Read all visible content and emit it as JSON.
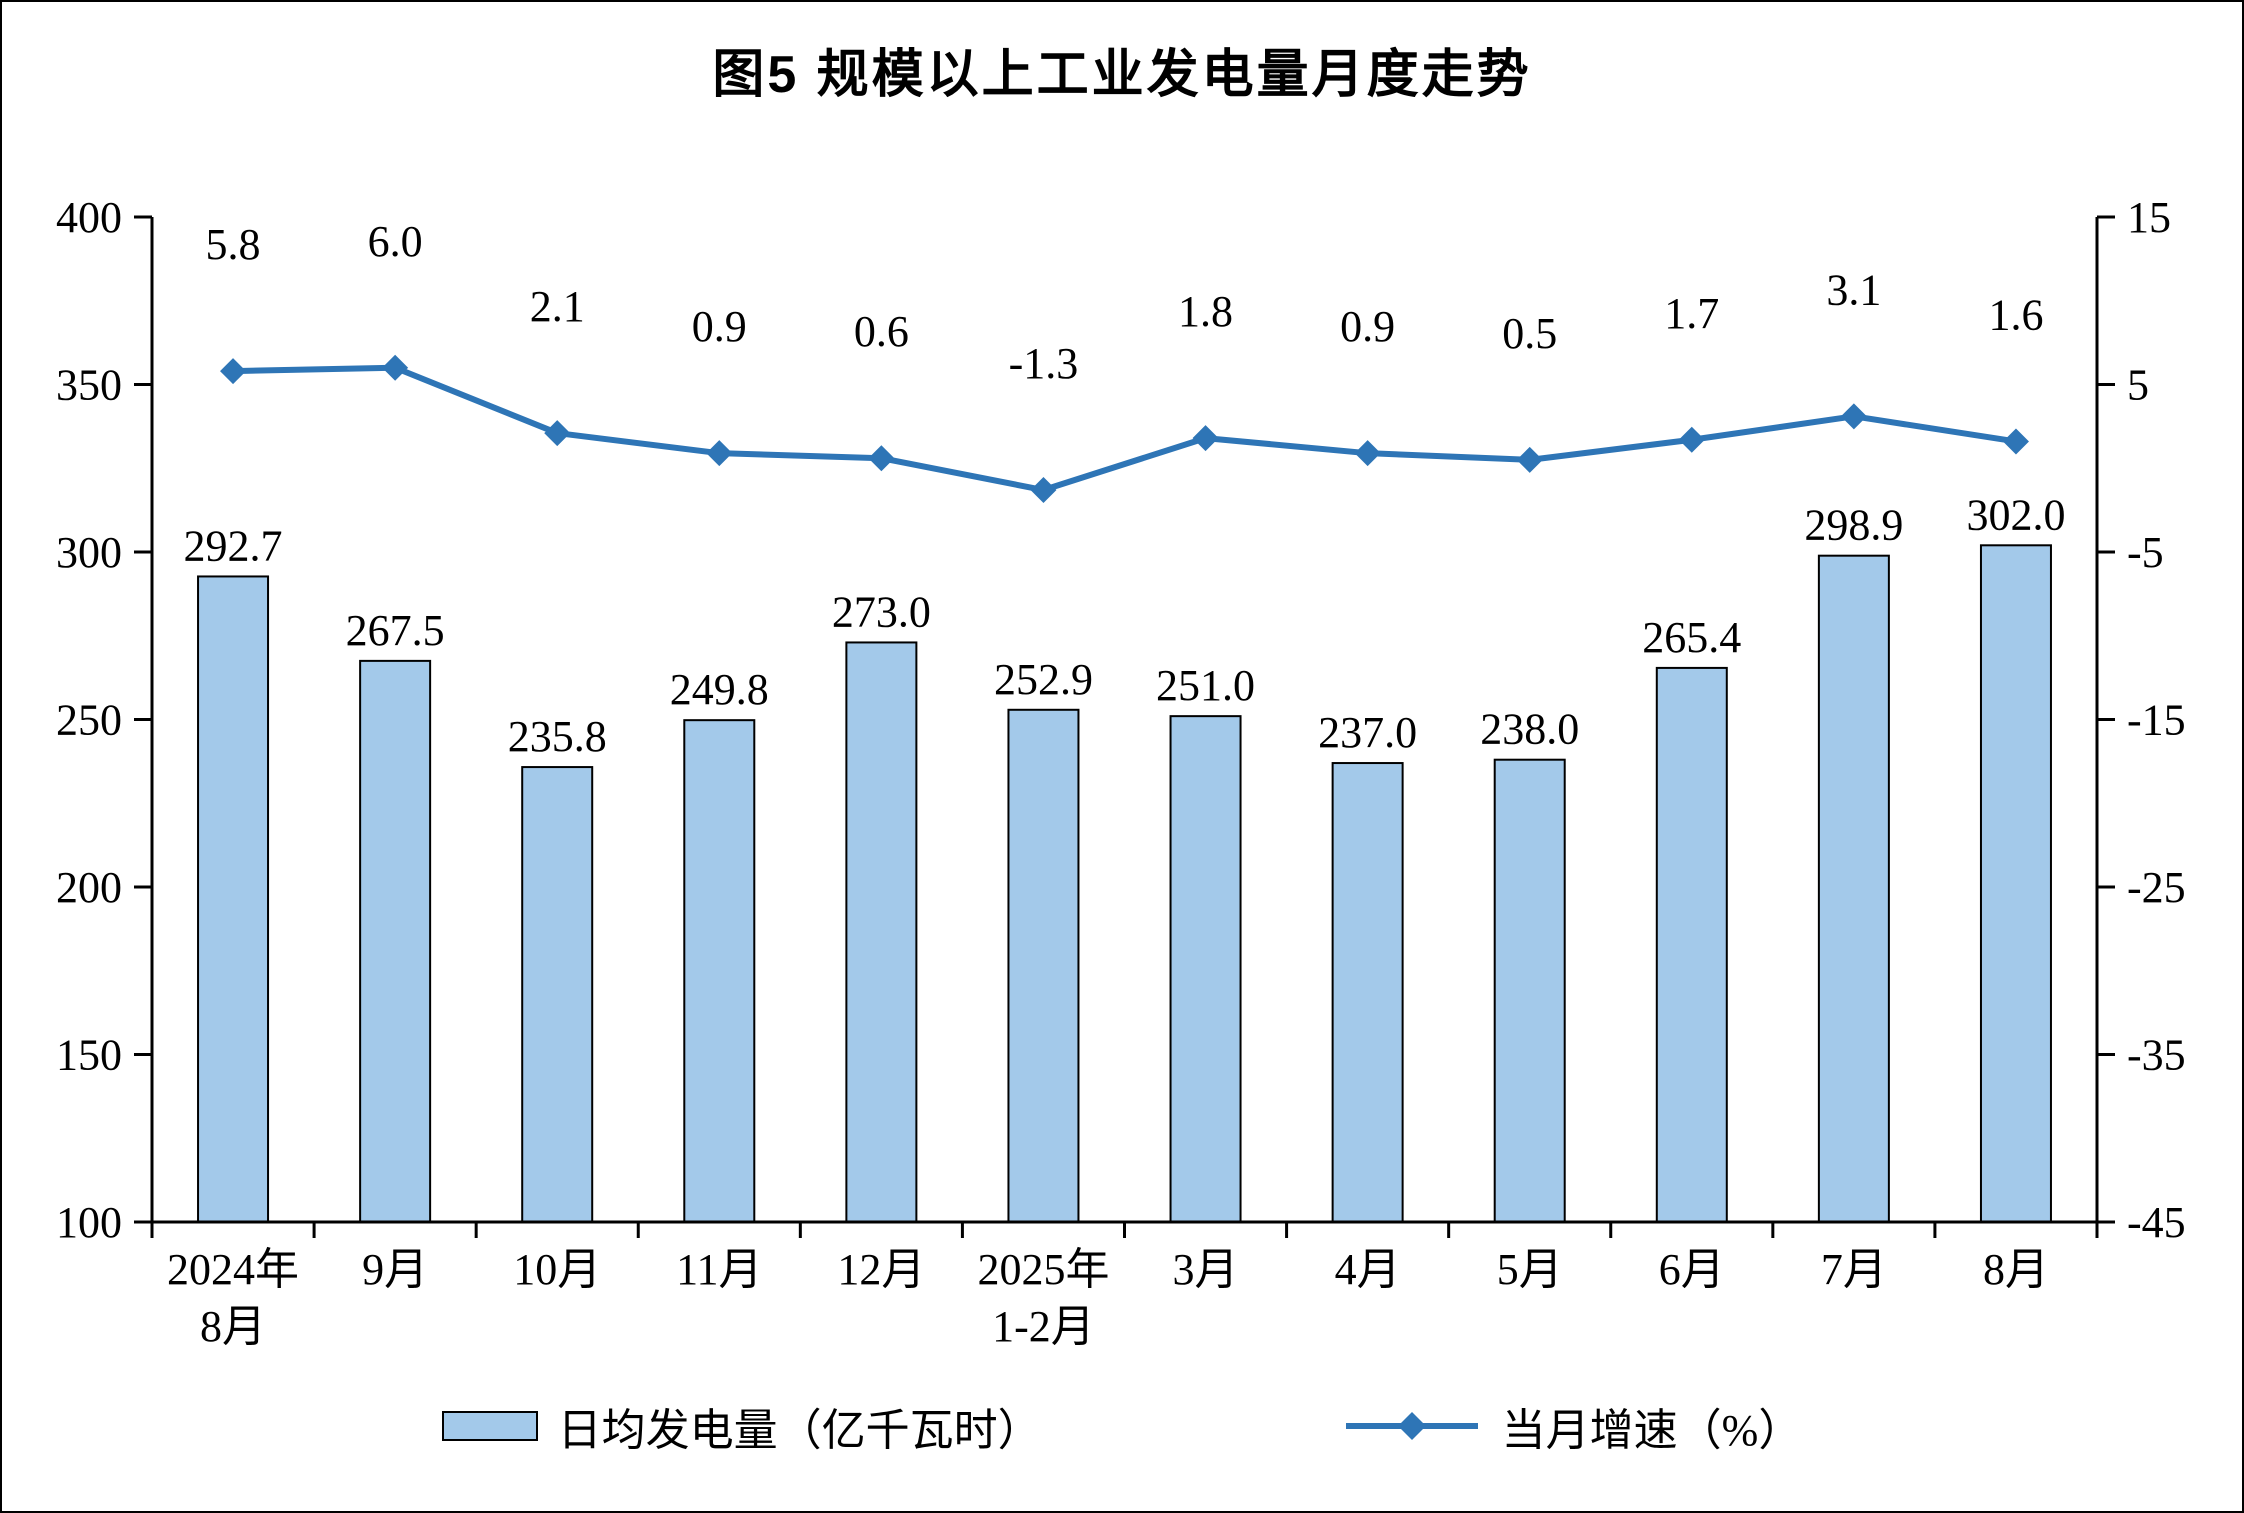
{
  "title": "图5 规模以上工业发电量月度走势",
  "colors": {
    "bar_fill": "#A3C9EA",
    "bar_border": "#000000",
    "line": "#2E75B6",
    "axis": "#000000",
    "text": "#000000",
    "background": "#FFFFFF"
  },
  "chart_data": {
    "type": "combo-bar-line",
    "title": "图5 规模以上工业发电量月度走势",
    "categories": [
      [
        "2024年",
        "8月"
      ],
      [
        "9月"
      ],
      [
        "10月"
      ],
      [
        "11月"
      ],
      [
        "12月"
      ],
      [
        "2025年",
        "1-2月"
      ],
      [
        "3月"
      ],
      [
        "4月"
      ],
      [
        "5月"
      ],
      [
        "6月"
      ],
      [
        "7月"
      ],
      [
        "8月"
      ]
    ],
    "series": [
      {
        "name": "日均发电量（亿千瓦时）",
        "type": "bar",
        "axis": "left",
        "values": [
          292.7,
          267.5,
          235.8,
          249.8,
          273.0,
          252.9,
          251.0,
          237.0,
          238.0,
          265.4,
          298.9,
          302.0
        ]
      },
      {
        "name": "当月增速（%）",
        "type": "line",
        "axis": "right",
        "values": [
          5.8,
          6.0,
          2.1,
          0.9,
          0.6,
          -1.3,
          1.8,
          0.9,
          0.5,
          1.7,
          3.1,
          1.6
        ]
      }
    ],
    "left_axis": {
      "min": 100,
      "max": 400,
      "step": 50,
      "ticks": [
        400,
        350,
        300,
        250,
        200,
        150,
        100
      ]
    },
    "right_axis": {
      "min": -45,
      "max": 15,
      "step": 10,
      "ticks": [
        15,
        5,
        -5,
        -15,
        -25,
        -35,
        -45
      ]
    },
    "grid": false,
    "legend_position": "bottom",
    "value_label_decimals": 1
  }
}
